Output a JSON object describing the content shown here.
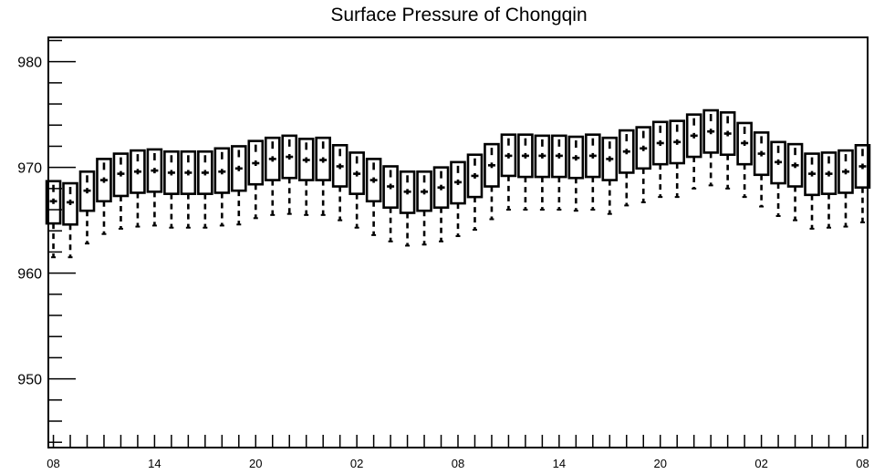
{
  "chart_data": {
    "type": "boxplot",
    "title": "Surface Pressure of Chongqin",
    "xlabel": "",
    "ylabel": "",
    "ylim": [
      943.5,
      982.3
    ],
    "y_ticks": [
      950,
      960,
      970,
      980
    ],
    "y_tick_labels": [
      "950",
      "960",
      "970",
      "980"
    ],
    "x_tick_labels": [
      "08",
      "14",
      "20",
      "02",
      "08",
      "14",
      "20",
      "02",
      "08"
    ],
    "x_tick_label_hours": [
      0,
      6,
      12,
      18,
      24,
      30,
      36,
      42,
      48
    ],
    "x_range_hours": [
      -0.3,
      48.3
    ],
    "grid": false,
    "colors": {
      "stroke": "#000000",
      "background": "#ffffff"
    },
    "boxes": [
      {
        "hour": 0,
        "whisker_low": 961.5,
        "q1": 964.7,
        "median": 966.8,
        "q3": 968.7
      },
      {
        "hour": 1,
        "whisker_low": 961.5,
        "q1": 964.6,
        "median": 966.7,
        "q3": 968.5
      },
      {
        "hour": 2,
        "whisker_low": 962.8,
        "q1": 965.9,
        "median": 967.8,
        "q3": 969.6
      },
      {
        "hour": 3,
        "whisker_low": 963.7,
        "q1": 966.8,
        "median": 968.8,
        "q3": 970.8
      },
      {
        "hour": 4,
        "whisker_low": 964.2,
        "q1": 967.3,
        "median": 969.4,
        "q3": 971.3
      },
      {
        "hour": 5,
        "whisker_low": 964.4,
        "q1": 967.6,
        "median": 969.6,
        "q3": 971.6
      },
      {
        "hour": 6,
        "whisker_low": 964.5,
        "q1": 967.7,
        "median": 969.7,
        "q3": 971.7
      },
      {
        "hour": 7,
        "whisker_low": 964.3,
        "q1": 967.5,
        "median": 969.5,
        "q3": 971.5
      },
      {
        "hour": 8,
        "whisker_low": 964.3,
        "q1": 967.5,
        "median": 969.5,
        "q3": 971.5
      },
      {
        "hour": 9,
        "whisker_low": 964.3,
        "q1": 967.5,
        "median": 969.5,
        "q3": 971.5
      },
      {
        "hour": 10,
        "whisker_low": 964.5,
        "q1": 967.6,
        "median": 969.6,
        "q3": 971.8
      },
      {
        "hour": 11,
        "whisker_low": 964.6,
        "q1": 967.8,
        "median": 969.9,
        "q3": 972.0
      },
      {
        "hour": 12,
        "whisker_low": 965.2,
        "q1": 968.4,
        "median": 970.4,
        "q3": 972.5
      },
      {
        "hour": 13,
        "whisker_low": 965.5,
        "q1": 968.8,
        "median": 970.8,
        "q3": 972.8
      },
      {
        "hour": 14,
        "whisker_low": 965.6,
        "q1": 969.0,
        "median": 971.0,
        "q3": 973.0
      },
      {
        "hour": 15,
        "whisker_low": 965.5,
        "q1": 968.8,
        "median": 970.7,
        "q3": 972.7
      },
      {
        "hour": 16,
        "whisker_low": 965.5,
        "q1": 968.8,
        "median": 970.7,
        "q3": 972.8
      },
      {
        "hour": 17,
        "whisker_low": 965.0,
        "q1": 968.2,
        "median": 970.1,
        "q3": 972.1
      },
      {
        "hour": 18,
        "whisker_low": 964.3,
        "q1": 967.5,
        "median": 969.4,
        "q3": 971.4
      },
      {
        "hour": 19,
        "whisker_low": 963.6,
        "q1": 966.8,
        "median": 968.8,
        "q3": 970.8
      },
      {
        "hour": 20,
        "whisker_low": 963.0,
        "q1": 966.2,
        "median": 968.2,
        "q3": 970.1
      },
      {
        "hour": 21,
        "whisker_low": 962.6,
        "q1": 965.7,
        "median": 967.7,
        "q3": 969.6
      },
      {
        "hour": 22,
        "whisker_low": 962.7,
        "q1": 965.9,
        "median": 967.7,
        "q3": 969.6
      },
      {
        "hour": 23,
        "whisker_low": 963.0,
        "q1": 966.2,
        "median": 968.1,
        "q3": 970.0
      },
      {
        "hour": 24,
        "whisker_low": 963.5,
        "q1": 966.6,
        "median": 968.6,
        "q3": 970.5
      },
      {
        "hour": 25,
        "whisker_low": 964.1,
        "q1": 967.2,
        "median": 969.2,
        "q3": 971.2
      },
      {
        "hour": 26,
        "whisker_low": 965.1,
        "q1": 968.2,
        "median": 970.2,
        "q3": 972.2
      },
      {
        "hour": 27,
        "whisker_low": 966.0,
        "q1": 969.2,
        "median": 971.1,
        "q3": 973.1
      },
      {
        "hour": 28,
        "whisker_low": 966.0,
        "q1": 969.1,
        "median": 971.1,
        "q3": 973.1
      },
      {
        "hour": 29,
        "whisker_low": 966.0,
        "q1": 969.1,
        "median": 971.1,
        "q3": 973.0
      },
      {
        "hour": 30,
        "whisker_low": 966.0,
        "q1": 969.1,
        "median": 971.1,
        "q3": 973.0
      },
      {
        "hour": 31,
        "whisker_low": 965.9,
        "q1": 969.0,
        "median": 970.9,
        "q3": 972.9
      },
      {
        "hour": 32,
        "whisker_low": 966.0,
        "q1": 969.1,
        "median": 971.1,
        "q3": 973.1
      },
      {
        "hour": 33,
        "whisker_low": 965.6,
        "q1": 968.8,
        "median": 970.8,
        "q3": 972.8
      },
      {
        "hour": 34,
        "whisker_low": 966.4,
        "q1": 969.5,
        "median": 971.5,
        "q3": 973.5
      },
      {
        "hour": 35,
        "whisker_low": 966.7,
        "q1": 969.9,
        "median": 971.8,
        "q3": 973.8
      },
      {
        "hour": 36,
        "whisker_low": 967.2,
        "q1": 970.3,
        "median": 972.3,
        "q3": 974.3
      },
      {
        "hour": 37,
        "whisker_low": 967.2,
        "q1": 970.4,
        "median": 972.4,
        "q3": 974.4
      },
      {
        "hour": 38,
        "whisker_low": 968.0,
        "q1": 971.0,
        "median": 973.0,
        "q3": 975.0
      },
      {
        "hour": 39,
        "whisker_low": 968.3,
        "q1": 971.4,
        "median": 973.4,
        "q3": 975.4
      },
      {
        "hour": 40,
        "whisker_low": 968.0,
        "q1": 971.2,
        "median": 973.2,
        "q3": 975.2
      },
      {
        "hour": 41,
        "whisker_low": 967.2,
        "q1": 970.3,
        "median": 972.3,
        "q3": 974.2
      },
      {
        "hour": 42,
        "whisker_low": 966.3,
        "q1": 969.3,
        "median": 971.3,
        "q3": 973.3
      },
      {
        "hour": 43,
        "whisker_low": 965.4,
        "q1": 968.5,
        "median": 970.5,
        "q3": 972.4
      },
      {
        "hour": 44,
        "whisker_low": 965.0,
        "q1": 968.2,
        "median": 970.2,
        "q3": 972.2
      },
      {
        "hour": 45,
        "whisker_low": 964.2,
        "q1": 967.4,
        "median": 969.4,
        "q3": 971.3
      },
      {
        "hour": 46,
        "whisker_low": 964.3,
        "q1": 967.5,
        "median": 969.4,
        "q3": 971.4
      },
      {
        "hour": 47,
        "whisker_low": 964.4,
        "q1": 967.6,
        "median": 969.6,
        "q3": 971.6
      },
      {
        "hour": 48,
        "whisker_low": 964.8,
        "q1": 968.1,
        "median": 970.1,
        "q3": 972.1
      }
    ]
  }
}
